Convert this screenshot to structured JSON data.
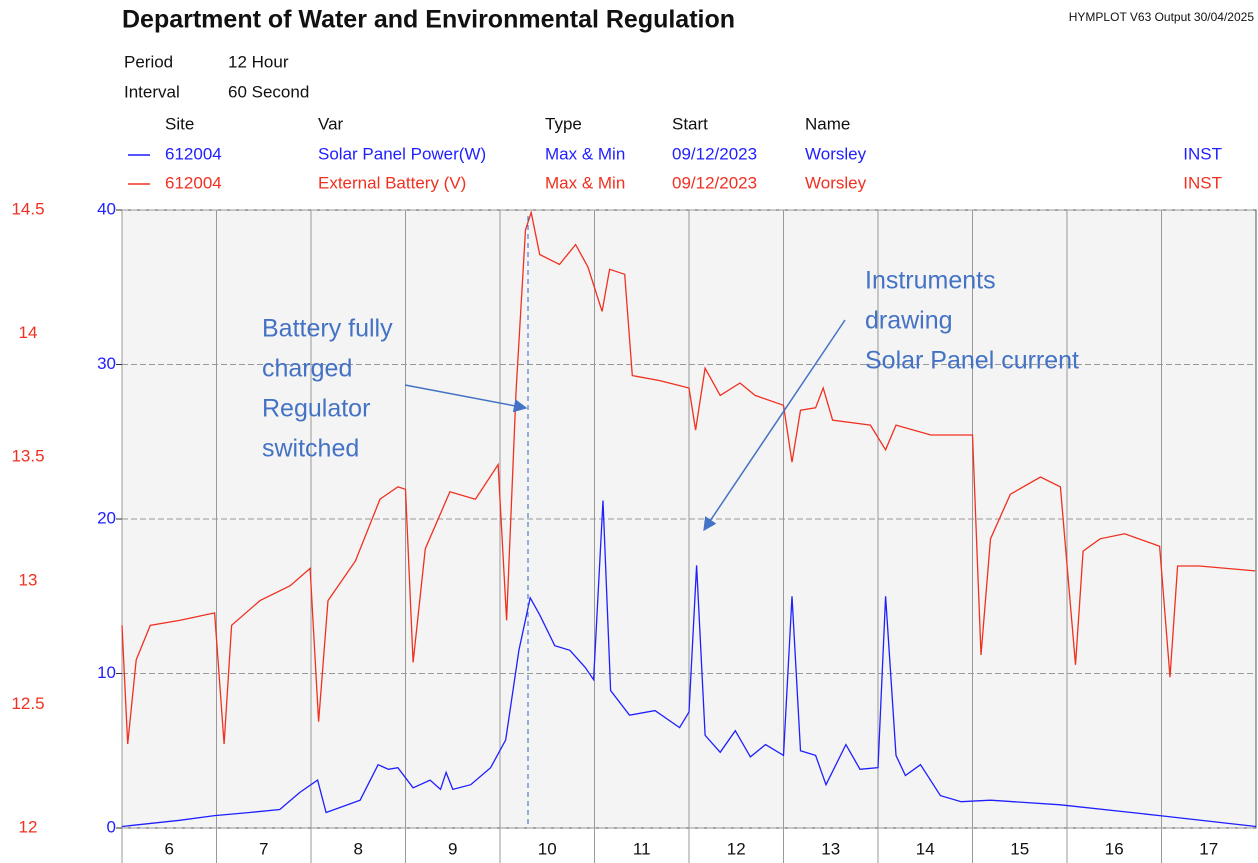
{
  "chart_data": {
    "type": "line",
    "title": "Department of Water and Environmental Regulation",
    "output_note": "HYMPLOT V63  Output 30/04/2025",
    "info": [
      {
        "label": "Period",
        "value": "12 Hour"
      },
      {
        "label": "Interval",
        "value": "60 Second"
      }
    ],
    "legend_columns": [
      "Site",
      "Var",
      "Type",
      "Start",
      "Name"
    ],
    "xlim": [
      6,
      18
    ],
    "xticks": [
      6,
      7,
      8,
      9,
      10,
      11,
      12,
      13,
      14,
      15,
      16,
      17
    ],
    "ylim": [
      0,
      40
    ],
    "yticks": [
      0,
      10,
      20,
      30,
      40
    ],
    "y2lim": [
      12,
      14.5
    ],
    "y2ticks": [
      12,
      12.5,
      13,
      13.5,
      14,
      14.5
    ],
    "grid": true,
    "series": [
      {
        "name": "Solar Panel Power(W)",
        "site": "612004",
        "stat": "Max & Min",
        "start": "09/12/2023",
        "location": "Worsley",
        "mode": "INST",
        "color": "#1f1fff",
        "axis": "y",
        "x": [
          6.0,
          6.61,
          6.98,
          7.35,
          7.67,
          7.88,
          8.07,
          8.16,
          8.52,
          8.71,
          8.82,
          8.92,
          9.08,
          9.26,
          9.37,
          9.43,
          9.5,
          9.69,
          9.9,
          10.06,
          10.2,
          10.32,
          10.42,
          10.58,
          10.74,
          10.9,
          10.99,
          11.09,
          11.17,
          11.37,
          11.64,
          11.9,
          12.0,
          12.08,
          12.17,
          12.33,
          12.49,
          12.65,
          12.81,
          13.0,
          13.09,
          13.18,
          13.34,
          13.45,
          13.66,
          13.81,
          14.0,
          14.08,
          14.19,
          14.29,
          14.45,
          14.66,
          14.88,
          15.19,
          15.93,
          16.98,
          18.0
        ],
        "values": [
          0.1,
          0.5,
          0.8,
          1.0,
          1.2,
          2.3,
          3.1,
          1.0,
          1.8,
          4.1,
          3.8,
          3.9,
          2.6,
          3.1,
          2.5,
          3.6,
          2.5,
          2.8,
          3.9,
          5.7,
          11.5,
          14.9,
          13.8,
          11.8,
          11.5,
          10.4,
          9.6,
          21.2,
          8.9,
          7.3,
          7.6,
          6.5,
          7.5,
          17.0,
          6.0,
          4.9,
          6.3,
          4.6,
          5.4,
          4.7,
          15.0,
          5.0,
          4.7,
          2.8,
          5.4,
          3.8,
          3.9,
          15.0,
          4.7,
          3.4,
          4.1,
          2.1,
          1.7,
          1.8,
          1.5,
          0.8,
          0.1
        ]
      },
      {
        "name": "External Battery (V)",
        "site": "612004",
        "stat": "Max & Min",
        "start": "09/12/2023",
        "location": "Worsley",
        "mode": "INST",
        "color": "#f03020",
        "axis": "y2",
        "x": [
          6.0,
          6.06,
          6.15,
          6.3,
          6.61,
          6.98,
          7.08,
          7.16,
          7.46,
          7.78,
          7.99,
          8.08,
          8.18,
          8.47,
          8.73,
          8.92,
          9.0,
          9.08,
          9.21,
          9.47,
          9.74,
          9.98,
          10.07,
          10.17,
          10.27,
          10.33,
          10.42,
          10.63,
          10.8,
          10.93,
          11.08,
          11.16,
          11.32,
          11.4,
          11.69,
          12.0,
          12.07,
          12.17,
          12.33,
          12.54,
          12.7,
          13.0,
          13.09,
          13.18,
          13.34,
          13.42,
          13.52,
          13.92,
          14.08,
          14.19,
          14.56,
          15.0,
          15.09,
          15.19,
          15.4,
          15.72,
          15.93,
          16.09,
          16.17,
          16.35,
          16.61,
          16.98,
          17.09,
          17.17,
          17.4,
          17.99
        ],
        "values": [
          12.82,
          12.34,
          12.68,
          12.82,
          12.84,
          12.87,
          12.34,
          12.82,
          12.92,
          12.98,
          13.05,
          12.43,
          12.92,
          13.08,
          13.33,
          13.38,
          13.37,
          12.67,
          13.13,
          13.36,
          13.33,
          13.47,
          12.84,
          13.77,
          14.42,
          14.49,
          14.32,
          14.28,
          14.36,
          14.27,
          14.09,
          14.26,
          14.24,
          13.83,
          13.81,
          13.78,
          13.61,
          13.86,
          13.75,
          13.8,
          13.75,
          13.71,
          13.48,
          13.69,
          13.7,
          13.78,
          13.65,
          13.63,
          13.53,
          13.63,
          13.59,
          13.59,
          12.7,
          13.17,
          13.35,
          13.42,
          13.38,
          12.66,
          13.12,
          13.17,
          13.19,
          13.14,
          12.61,
          13.06,
          13.06,
          13.04
        ]
      }
    ],
    "annotations": [
      {
        "lines": [
          "Battery fully",
          "charged",
          "Regulator",
          "switched"
        ]
      },
      {
        "lines": [
          "Instruments",
          "drawing",
          "Solar Panel current"
        ]
      }
    ]
  }
}
